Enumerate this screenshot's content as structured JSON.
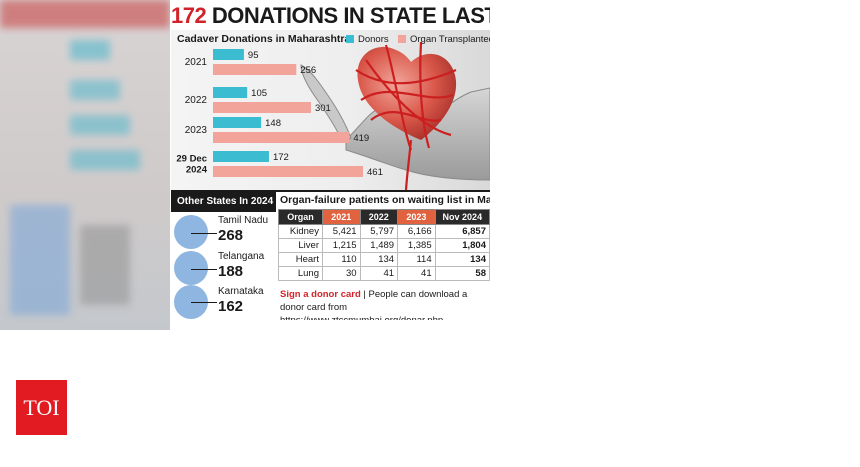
{
  "headline": {
    "number": "172",
    "text": "DONATIONS IN STATE LAST YR"
  },
  "chart_data": {
    "type": "bar",
    "title": "Cadaver Donations in Maharashtra",
    "categories": [
      "2021",
      "2022",
      "2023",
      "29 Dec 2024"
    ],
    "series": [
      {
        "name": "Donors",
        "values": [
          95,
          105,
          148,
          172
        ],
        "color": "#3bbcd0"
      },
      {
        "name": "Organ Transplanted",
        "values": [
          256,
          301,
          419,
          461
        ],
        "color": "#f2a49b"
      }
    ],
    "xlim": [
      0,
      461
    ]
  },
  "other_states": {
    "title": "Other States In 2024",
    "items": [
      {
        "name": "Tamil Nadu",
        "count": "268"
      },
      {
        "name": "Telangana",
        "count": "188"
      },
      {
        "name": "Karnataka",
        "count": "162"
      }
    ]
  },
  "waiting_list": {
    "title": "Organ-failure patients on waiting list in Maharashtra",
    "columns": [
      "Organ",
      "2021",
      "2022",
      "2023",
      "Nov 2024"
    ],
    "rows": [
      [
        "Kidney",
        "5,421",
        "5,797",
        "6,166",
        "6,857"
      ],
      [
        "Liver",
        "1,215",
        "1,489",
        "1,385",
        "1,804"
      ],
      [
        "Heart",
        "110",
        "134",
        "114",
        "134"
      ],
      [
        "Lung",
        "30",
        "41",
        "41",
        "58"
      ]
    ]
  },
  "donor_card": {
    "lead": "Sign a donor card",
    "text": "People can download a donor card from https://www.ztccmumbai.org/donar.php"
  },
  "logo": {
    "text": "TOI"
  }
}
